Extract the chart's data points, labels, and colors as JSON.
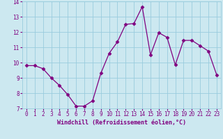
{
  "hours": [
    0,
    1,
    2,
    3,
    4,
    5,
    6,
    7,
    8,
    9,
    10,
    11,
    12,
    13,
    14,
    15,
    16,
    17,
    18,
    19,
    20,
    21,
    22,
    23
  ],
  "values": [
    9.8,
    9.8,
    9.6,
    9.0,
    8.5,
    7.9,
    7.15,
    7.15,
    7.5,
    9.3,
    10.6,
    11.35,
    12.5,
    12.55,
    13.65,
    10.5,
    11.95,
    11.65,
    9.85,
    11.45,
    11.45,
    11.1,
    10.75,
    9.2
  ],
  "xlabel": "Windchill (Refroidissement éolien,°C)",
  "ylim": [
    7,
    14
  ],
  "yticks": [
    7,
    8,
    9,
    10,
    11,
    12,
    13,
    14
  ],
  "xticks": [
    0,
    1,
    2,
    3,
    4,
    5,
    6,
    7,
    8,
    9,
    10,
    11,
    12,
    13,
    14,
    15,
    16,
    17,
    18,
    19,
    20,
    21,
    22,
    23
  ],
  "line_color": "#800080",
  "marker_color": "#800080",
  "bg_color": "#cce8f0",
  "grid_color": "#99ccdd",
  "xlabel_color": "#800080",
  "tick_color": "#800080",
  "font": "monospace",
  "tick_fontsize": 5.5,
  "xlabel_fontsize": 6.0,
  "linewidth": 0.9,
  "markersize": 2.5
}
